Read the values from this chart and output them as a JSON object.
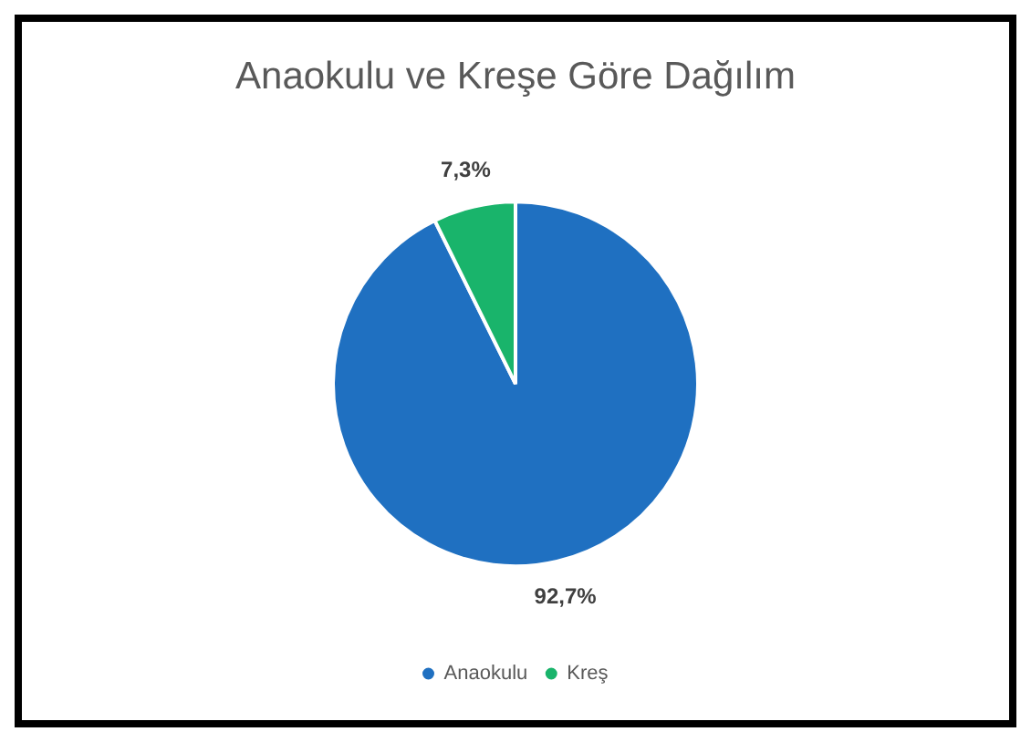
{
  "chart_data": {
    "type": "pie",
    "title": "Anaokulu ve Kreşe Göre Dağılım",
    "categories": [
      "Anaokulu",
      "Kreş"
    ],
    "values": [
      92.7,
      7.3
    ],
    "colors": [
      "#1f70c1",
      "#19b46b"
    ],
    "value_labels": [
      "92,7%",
      "7,3%"
    ],
    "legend": "bottom"
  }
}
